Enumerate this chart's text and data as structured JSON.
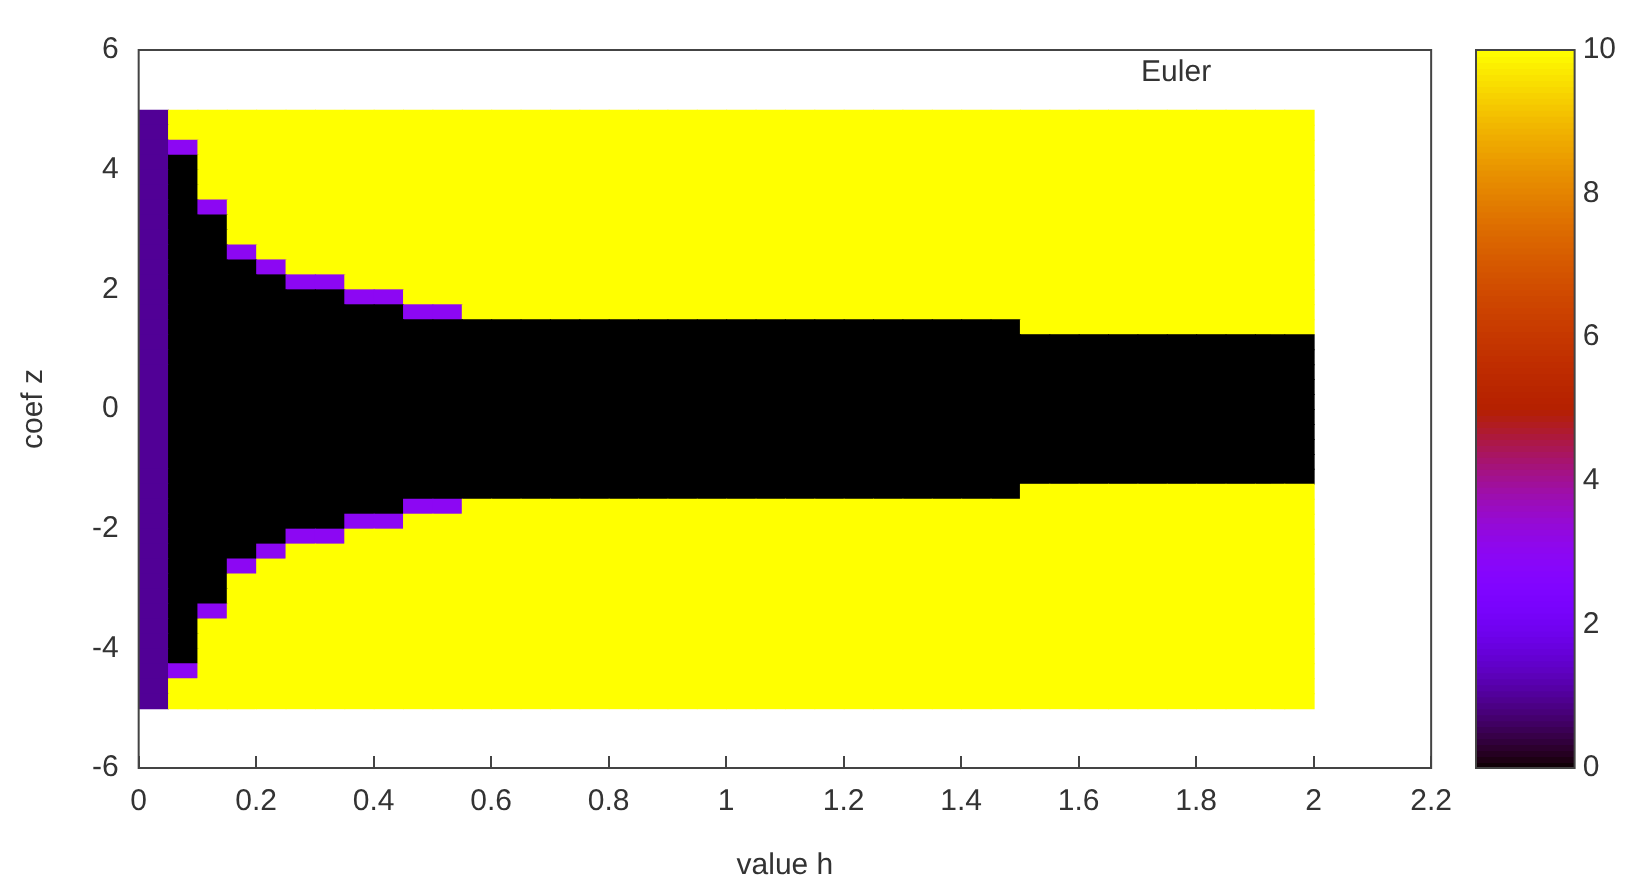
{
  "chart_data": {
    "type": "heatmap",
    "xlabel": "value h",
    "ylabel": "coef z",
    "annotations": [
      "Euler"
    ],
    "x": [
      0.025,
      0.075,
      0.125,
      0.175,
      0.225,
      0.275,
      0.325,
      0.375,
      0.425,
      0.475,
      0.525,
      0.575,
      0.625,
      0.675,
      0.725,
      0.775,
      0.825,
      0.875,
      0.925,
      0.975,
      1.025,
      1.075,
      1.125,
      1.175,
      1.225,
      1.275,
      1.325,
      1.375,
      1.425,
      1.475,
      1.525,
      1.575,
      1.625,
      1.675,
      1.725,
      1.775,
      1.825,
      1.875,
      1.925,
      1.975
    ],
    "y": [
      4.875,
      4.625,
      4.375,
      4.125,
      3.875,
      3.625,
      3.375,
      3.125,
      2.875,
      2.625,
      2.375,
      2.125,
      1.875,
      1.625,
      1.375,
      1.125,
      0.875,
      0.625,
      0.375,
      0.125,
      -0.125,
      -0.375,
      -0.625,
      -0.875,
      -1.125,
      -1.375,
      -1.625,
      -1.875,
      -2.125,
      -2.375,
      -2.625,
      -2.875,
      -3.125,
      -3.375,
      -3.625,
      -3.875,
      -4.125,
      -4.375,
      -4.625,
      -4.875
    ],
    "cells": [
      [
        1,
        10,
        10,
        10,
        10,
        10,
        10,
        10,
        10,
        10,
        10,
        10,
        10,
        10,
        10,
        10,
        10,
        10,
        10,
        10,
        10,
        10,
        10,
        10,
        10,
        10,
        10,
        10,
        10,
        10,
        10,
        10,
        10,
        10,
        10,
        10,
        10,
        10,
        10,
        10
      ],
      [
        1,
        10,
        10,
        10,
        10,
        10,
        10,
        10,
        10,
        10,
        10,
        10,
        10,
        10,
        10,
        10,
        10,
        10,
        10,
        10,
        10,
        10,
        10,
        10,
        10,
        10,
        10,
        10,
        10,
        10,
        10,
        10,
        10,
        10,
        10,
        10,
        10,
        10,
        10,
        10
      ],
      [
        1,
        3,
        10,
        10,
        10,
        10,
        10,
        10,
        10,
        10,
        10,
        10,
        10,
        10,
        10,
        10,
        10,
        10,
        10,
        10,
        10,
        10,
        10,
        10,
        10,
        10,
        10,
        10,
        10,
        10,
        10,
        10,
        10,
        10,
        10,
        10,
        10,
        10,
        10,
        10
      ],
      [
        1,
        0,
        10,
        10,
        10,
        10,
        10,
        10,
        10,
        10,
        10,
        10,
        10,
        10,
        10,
        10,
        10,
        10,
        10,
        10,
        10,
        10,
        10,
        10,
        10,
        10,
        10,
        10,
        10,
        10,
        10,
        10,
        10,
        10,
        10,
        10,
        10,
        10,
        10,
        10
      ],
      [
        1,
        0,
        10,
        10,
        10,
        10,
        10,
        10,
        10,
        10,
        10,
        10,
        10,
        10,
        10,
        10,
        10,
        10,
        10,
        10,
        10,
        10,
        10,
        10,
        10,
        10,
        10,
        10,
        10,
        10,
        10,
        10,
        10,
        10,
        10,
        10,
        10,
        10,
        10,
        10
      ],
      [
        1,
        0,
        10,
        10,
        10,
        10,
        10,
        10,
        10,
        10,
        10,
        10,
        10,
        10,
        10,
        10,
        10,
        10,
        10,
        10,
        10,
        10,
        10,
        10,
        10,
        10,
        10,
        10,
        10,
        10,
        10,
        10,
        10,
        10,
        10,
        10,
        10,
        10,
        10,
        10
      ],
      [
        1,
        0,
        3,
        10,
        10,
        10,
        10,
        10,
        10,
        10,
        10,
        10,
        10,
        10,
        10,
        10,
        10,
        10,
        10,
        10,
        10,
        10,
        10,
        10,
        10,
        10,
        10,
        10,
        10,
        10,
        10,
        10,
        10,
        10,
        10,
        10,
        10,
        10,
        10,
        10
      ],
      [
        1,
        0,
        0,
        10,
        10,
        10,
        10,
        10,
        10,
        10,
        10,
        10,
        10,
        10,
        10,
        10,
        10,
        10,
        10,
        10,
        10,
        10,
        10,
        10,
        10,
        10,
        10,
        10,
        10,
        10,
        10,
        10,
        10,
        10,
        10,
        10,
        10,
        10,
        10,
        10
      ],
      [
        1,
        0,
        0,
        10,
        10,
        10,
        10,
        10,
        10,
        10,
        10,
        10,
        10,
        10,
        10,
        10,
        10,
        10,
        10,
        10,
        10,
        10,
        10,
        10,
        10,
        10,
        10,
        10,
        10,
        10,
        10,
        10,
        10,
        10,
        10,
        10,
        10,
        10,
        10,
        10
      ],
      [
        1,
        0,
        0,
        3,
        10,
        10,
        10,
        10,
        10,
        10,
        10,
        10,
        10,
        10,
        10,
        10,
        10,
        10,
        10,
        10,
        10,
        10,
        10,
        10,
        10,
        10,
        10,
        10,
        10,
        10,
        10,
        10,
        10,
        10,
        10,
        10,
        10,
        10,
        10,
        10
      ],
      [
        1,
        0,
        0,
        0,
        3,
        10,
        10,
        10,
        10,
        10,
        10,
        10,
        10,
        10,
        10,
        10,
        10,
        10,
        10,
        10,
        10,
        10,
        10,
        10,
        10,
        10,
        10,
        10,
        10,
        10,
        10,
        10,
        10,
        10,
        10,
        10,
        10,
        10,
        10,
        10
      ],
      [
        1,
        0,
        0,
        0,
        0,
        3,
        3,
        10,
        10,
        10,
        10,
        10,
        10,
        10,
        10,
        10,
        10,
        10,
        10,
        10,
        10,
        10,
        10,
        10,
        10,
        10,
        10,
        10,
        10,
        10,
        10,
        10,
        10,
        10,
        10,
        10,
        10,
        10,
        10,
        10
      ],
      [
        1,
        0,
        0,
        0,
        0,
        0,
        0,
        3,
        3,
        10,
        10,
        10,
        10,
        10,
        10,
        10,
        10,
        10,
        10,
        10,
        10,
        10,
        10,
        10,
        10,
        10,
        10,
        10,
        10,
        10,
        10,
        10,
        10,
        10,
        10,
        10,
        10,
        10,
        10,
        10
      ],
      [
        1,
        0,
        0,
        0,
        0,
        0,
        0,
        0,
        0,
        3,
        3,
        10,
        10,
        10,
        10,
        10,
        10,
        10,
        10,
        10,
        10,
        10,
        10,
        10,
        10,
        10,
        10,
        10,
        10,
        10,
        10,
        10,
        10,
        10,
        10,
        10,
        10,
        10,
        10,
        10
      ],
      [
        1,
        0,
        0,
        0,
        0,
        0,
        0,
        0,
        0,
        0,
        0,
        0,
        0,
        0,
        0,
        0,
        0,
        0,
        0,
        0,
        0,
        0,
        0,
        0,
        0,
        0,
        0,
        0,
        0,
        0,
        10,
        10,
        10,
        10,
        10,
        10,
        10,
        10,
        10,
        10
      ],
      [
        1,
        0,
        0,
        0,
        0,
        0,
        0,
        0,
        0,
        0,
        0,
        0,
        0,
        0,
        0,
        0,
        0,
        0,
        0,
        0,
        0,
        0,
        0,
        0,
        0,
        0,
        0,
        0,
        0,
        0,
        0,
        0,
        0,
        0,
        0,
        0,
        0,
        0,
        0,
        0
      ],
      [
        1,
        0,
        0,
        0,
        0,
        0,
        0,
        0,
        0,
        0,
        0,
        0,
        0,
        0,
        0,
        0,
        0,
        0,
        0,
        0,
        0,
        0,
        0,
        0,
        0,
        0,
        0,
        0,
        0,
        0,
        0,
        0,
        0,
        0,
        0,
        0,
        0,
        0,
        0,
        0
      ],
      [
        1,
        0,
        0,
        0,
        0,
        0,
        0,
        0,
        0,
        0,
        0,
        0,
        0,
        0,
        0,
        0,
        0,
        0,
        0,
        0,
        0,
        0,
        0,
        0,
        0,
        0,
        0,
        0,
        0,
        0,
        0,
        0,
        0,
        0,
        0,
        0,
        0,
        0,
        0,
        0
      ],
      [
        1,
        0,
        0,
        0,
        0,
        0,
        0,
        0,
        0,
        0,
        0,
        0,
        0,
        0,
        0,
        0,
        0,
        0,
        0,
        0,
        0,
        0,
        0,
        0,
        0,
        0,
        0,
        0,
        0,
        0,
        0,
        0,
        0,
        0,
        0,
        0,
        0,
        0,
        0,
        0
      ],
      [
        1,
        0,
        0,
        0,
        0,
        0,
        0,
        0,
        0,
        0,
        0,
        0,
        0,
        0,
        0,
        0,
        0,
        0,
        0,
        0,
        0,
        0,
        0,
        0,
        0,
        0,
        0,
        0,
        0,
        0,
        0,
        0,
        0,
        0,
        0,
        0,
        0,
        0,
        0,
        0
      ],
      [
        1,
        0,
        0,
        0,
        0,
        0,
        0,
        0,
        0,
        0,
        0,
        0,
        0,
        0,
        0,
        0,
        0,
        0,
        0,
        0,
        0,
        0,
        0,
        0,
        0,
        0,
        0,
        0,
        0,
        0,
        0,
        0,
        0,
        0,
        0,
        0,
        0,
        0,
        0,
        0
      ],
      [
        1,
        0,
        0,
        0,
        0,
        0,
        0,
        0,
        0,
        0,
        0,
        0,
        0,
        0,
        0,
        0,
        0,
        0,
        0,
        0,
        0,
        0,
        0,
        0,
        0,
        0,
        0,
        0,
        0,
        0,
        0,
        0,
        0,
        0,
        0,
        0,
        0,
        0,
        0,
        0
      ],
      [
        1,
        0,
        0,
        0,
        0,
        0,
        0,
        0,
        0,
        0,
        0,
        0,
        0,
        0,
        0,
        0,
        0,
        0,
        0,
        0,
        0,
        0,
        0,
        0,
        0,
        0,
        0,
        0,
        0,
        0,
        0,
        0,
        0,
        0,
        0,
        0,
        0,
        0,
        0,
        0
      ],
      [
        1,
        0,
        0,
        0,
        0,
        0,
        0,
        0,
        0,
        0,
        0,
        0,
        0,
        0,
        0,
        0,
        0,
        0,
        0,
        0,
        0,
        0,
        0,
        0,
        0,
        0,
        0,
        0,
        0,
        0,
        0,
        0,
        0,
        0,
        0,
        0,
        0,
        0,
        0,
        0
      ],
      [
        1,
        0,
        0,
        0,
        0,
        0,
        0,
        0,
        0,
        0,
        0,
        0,
        0,
        0,
        0,
        0,
        0,
        0,
        0,
        0,
        0,
        0,
        0,
        0,
        0,
        0,
        0,
        0,
        0,
        0,
        0,
        0,
        0,
        0,
        0,
        0,
        0,
        0,
        0,
        0
      ],
      [
        1,
        0,
        0,
        0,
        0,
        0,
        0,
        0,
        0,
        0,
        0,
        0,
        0,
        0,
        0,
        0,
        0,
        0,
        0,
        0,
        0,
        0,
        0,
        0,
        0,
        0,
        0,
        0,
        0,
        0,
        10,
        10,
        10,
        10,
        10,
        10,
        10,
        10,
        10,
        10
      ],
      [
        1,
        0,
        0,
        0,
        0,
        0,
        0,
        0,
        0,
        3,
        3,
        10,
        10,
        10,
        10,
        10,
        10,
        10,
        10,
        10,
        10,
        10,
        10,
        10,
        10,
        10,
        10,
        10,
        10,
        10,
        10,
        10,
        10,
        10,
        10,
        10,
        10,
        10,
        10,
        10
      ],
      [
        1,
        0,
        0,
        0,
        0,
        0,
        0,
        3,
        3,
        10,
        10,
        10,
        10,
        10,
        10,
        10,
        10,
        10,
        10,
        10,
        10,
        10,
        10,
        10,
        10,
        10,
        10,
        10,
        10,
        10,
        10,
        10,
        10,
        10,
        10,
        10,
        10,
        10,
        10,
        10
      ],
      [
        1,
        0,
        0,
        0,
        0,
        3,
        3,
        10,
        10,
        10,
        10,
        10,
        10,
        10,
        10,
        10,
        10,
        10,
        10,
        10,
        10,
        10,
        10,
        10,
        10,
        10,
        10,
        10,
        10,
        10,
        10,
        10,
        10,
        10,
        10,
        10,
        10,
        10,
        10,
        10
      ],
      [
        1,
        0,
        0,
        0,
        3,
        10,
        10,
        10,
        10,
        10,
        10,
        10,
        10,
        10,
        10,
        10,
        10,
        10,
        10,
        10,
        10,
        10,
        10,
        10,
        10,
        10,
        10,
        10,
        10,
        10,
        10,
        10,
        10,
        10,
        10,
        10,
        10,
        10,
        10,
        10
      ],
      [
        1,
        0,
        0,
        3,
        10,
        10,
        10,
        10,
        10,
        10,
        10,
        10,
        10,
        10,
        10,
        10,
        10,
        10,
        10,
        10,
        10,
        10,
        10,
        10,
        10,
        10,
        10,
        10,
        10,
        10,
        10,
        10,
        10,
        10,
        10,
        10,
        10,
        10,
        10,
        10
      ],
      [
        1,
        0,
        0,
        10,
        10,
        10,
        10,
        10,
        10,
        10,
        10,
        10,
        10,
        10,
        10,
        10,
        10,
        10,
        10,
        10,
        10,
        10,
        10,
        10,
        10,
        10,
        10,
        10,
        10,
        10,
        10,
        10,
        10,
        10,
        10,
        10,
        10,
        10,
        10,
        10
      ],
      [
        1,
        0,
        0,
        10,
        10,
        10,
        10,
        10,
        10,
        10,
        10,
        10,
        10,
        10,
        10,
        10,
        10,
        10,
        10,
        10,
        10,
        10,
        10,
        10,
        10,
        10,
        10,
        10,
        10,
        10,
        10,
        10,
        10,
        10,
        10,
        10,
        10,
        10,
        10,
        10
      ],
      [
        1,
        0,
        3,
        10,
        10,
        10,
        10,
        10,
        10,
        10,
        10,
        10,
        10,
        10,
        10,
        10,
        10,
        10,
        10,
        10,
        10,
        10,
        10,
        10,
        10,
        10,
        10,
        10,
        10,
        10,
        10,
        10,
        10,
        10,
        10,
        10,
        10,
        10,
        10,
        10
      ],
      [
        1,
        0,
        10,
        10,
        10,
        10,
        10,
        10,
        10,
        10,
        10,
        10,
        10,
        10,
        10,
        10,
        10,
        10,
        10,
        10,
        10,
        10,
        10,
        10,
        10,
        10,
        10,
        10,
        10,
        10,
        10,
        10,
        10,
        10,
        10,
        10,
        10,
        10,
        10,
        10
      ],
      [
        1,
        0,
        10,
        10,
        10,
        10,
        10,
        10,
        10,
        10,
        10,
        10,
        10,
        10,
        10,
        10,
        10,
        10,
        10,
        10,
        10,
        10,
        10,
        10,
        10,
        10,
        10,
        10,
        10,
        10,
        10,
        10,
        10,
        10,
        10,
        10,
        10,
        10,
        10,
        10
      ],
      [
        1,
        0,
        10,
        10,
        10,
        10,
        10,
        10,
        10,
        10,
        10,
        10,
        10,
        10,
        10,
        10,
        10,
        10,
        10,
        10,
        10,
        10,
        10,
        10,
        10,
        10,
        10,
        10,
        10,
        10,
        10,
        10,
        10,
        10,
        10,
        10,
        10,
        10,
        10,
        10
      ],
      [
        1,
        3,
        10,
        10,
        10,
        10,
        10,
        10,
        10,
        10,
        10,
        10,
        10,
        10,
        10,
        10,
        10,
        10,
        10,
        10,
        10,
        10,
        10,
        10,
        10,
        10,
        10,
        10,
        10,
        10,
        10,
        10,
        10,
        10,
        10,
        10,
        10,
        10,
        10,
        10
      ],
      [
        1,
        10,
        10,
        10,
        10,
        10,
        10,
        10,
        10,
        10,
        10,
        10,
        10,
        10,
        10,
        10,
        10,
        10,
        10,
        10,
        10,
        10,
        10,
        10,
        10,
        10,
        10,
        10,
        10,
        10,
        10,
        10,
        10,
        10,
        10,
        10,
        10,
        10,
        10,
        10
      ],
      [
        1,
        10,
        10,
        10,
        10,
        10,
        10,
        10,
        10,
        10,
        10,
        10,
        10,
        10,
        10,
        10,
        10,
        10,
        10,
        10,
        10,
        10,
        10,
        10,
        10,
        10,
        10,
        10,
        10,
        10,
        10,
        10,
        10,
        10,
        10,
        10,
        10,
        10,
        10,
        10
      ]
    ],
    "xlim": [
      0,
      2.2
    ],
    "xticks": [
      0,
      0.2,
      0.4,
      0.6,
      0.8,
      1,
      1.2,
      1.4,
      1.6,
      1.8,
      2,
      2.2
    ],
    "ylim": [
      -6,
      6
    ],
    "yticks": [
      -6,
      -4,
      -2,
      0,
      2,
      4,
      6
    ],
    "clim": [
      0,
      10
    ],
    "cticks": [
      0,
      2,
      4,
      6,
      8,
      10
    ],
    "grid": false,
    "legend": false
  }
}
